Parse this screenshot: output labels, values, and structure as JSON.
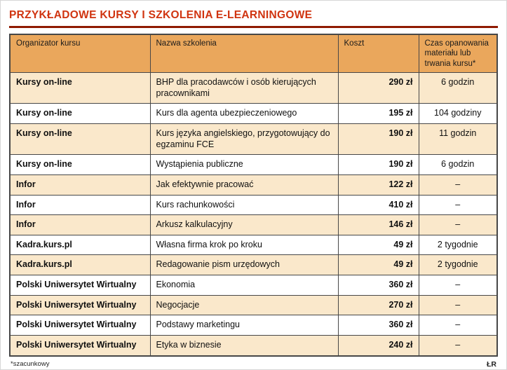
{
  "title": "PRZYKŁADOWE KURSY I SZKOLENIA E-LEARNINGOWE",
  "footnote": "*szacunkowy",
  "credit": "ŁR",
  "colors": {
    "title": "#d03410",
    "title_rule": "#8f1a02",
    "header_bg": "#eaa75c",
    "row_cream": "#fae8cb",
    "row_white": "#ffffff",
    "cost_text": "#e27b00",
    "border": "#474747"
  },
  "chart_data": {
    "type": "table",
    "title": "PRZYKŁADOWE KURSY I SZKOLENIA E-LEARNINGOWE",
    "columns": [
      "Organizator kursu",
      "Nazwa szkolenia",
      "Koszt",
      "Czas opanowania materiału lub trwania kursu*"
    ],
    "rows": [
      [
        "Kursy on-line",
        "BHP dla pracodawców i osób kierujących pracownikami",
        "290 zł",
        "6 godzin"
      ],
      [
        "Kursy on-line",
        "Kurs dla agenta ubezpieczeniowego",
        "195 zł",
        "104 godziny"
      ],
      [
        "Kursy on-line",
        "Kurs języka angielskiego, przygotowujący do egzaminu FCE",
        "190 zł",
        "11 godzin"
      ],
      [
        "Kursy on-line",
        "Wystąpienia publiczne",
        "190 zł",
        "6 godzin"
      ],
      [
        "Infor",
        "Jak efektywnie pracować",
        "122 zł",
        "–"
      ],
      [
        "Infor",
        "Kurs rachunkowości",
        "410 zł",
        "–"
      ],
      [
        "Infor",
        "Arkusz kalkulacyjny",
        "146 zł",
        "–"
      ],
      [
        "Kadra.kurs.pl",
        "Własna firma krok po kroku",
        "49 zł",
        "2 tygodnie"
      ],
      [
        "Kadra.kurs.pl",
        "Redagowanie pism urzędowych",
        "49 zł",
        "2 tygodnie"
      ],
      [
        "Polski Uniwersytet Wirtualny",
        "Ekonomia",
        "360 zł",
        "–"
      ],
      [
        "Polski Uniwersytet Wirtualny",
        "Negocjacje",
        "270 zł",
        "–"
      ],
      [
        "Polski Uniwersytet Wirtualny",
        "Podstawy marketingu",
        "360 zł",
        "–"
      ],
      [
        "Polski Uniwersytet Wirtualny",
        "Etyka w biznesie",
        "240 zł",
        "–"
      ]
    ],
    "notes": "*szacunkowy"
  }
}
